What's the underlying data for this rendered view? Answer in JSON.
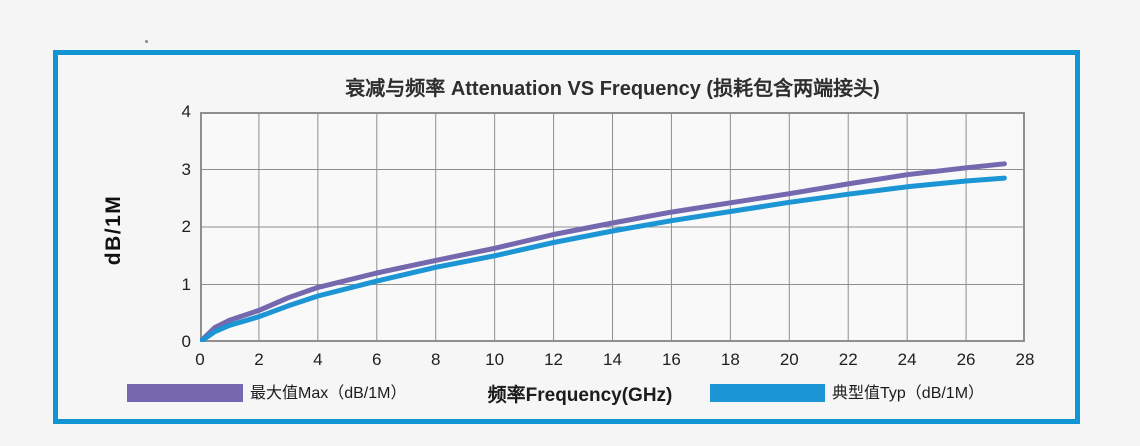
{
  "window": {
    "background": "#f5f5f6"
  },
  "panel": {
    "border_color": "#1094d4"
  },
  "chart_data": {
    "type": "line",
    "title": "衰减与频率 Attenuation VS Frequency (损耗包含两端接头)",
    "xlabel": "频率Frequency(GHz)",
    "ylabel": "dB/1M",
    "xlim": [
      0,
      28
    ],
    "ylim": [
      0,
      4
    ],
    "x_ticks": [
      0,
      2,
      4,
      6,
      8,
      10,
      12,
      14,
      16,
      18,
      20,
      22,
      24,
      26,
      28
    ],
    "y_ticks": [
      0,
      1,
      2,
      3,
      4
    ],
    "grid": true,
    "grid_color": "#8f8f8f",
    "plot_bg": "#f9f9fa",
    "legend_position": "bottom",
    "x": [
      0,
      0.5,
      1,
      2,
      3,
      4,
      6,
      8,
      10,
      12,
      14,
      16,
      18,
      20,
      22,
      24,
      26,
      27.3
    ],
    "series": [
      {
        "name": "最大值Max（dB/1M）",
        "color": "#7568ae",
        "values": [
          0,
          0.25,
          0.38,
          0.55,
          0.77,
          0.95,
          1.2,
          1.42,
          1.63,
          1.87,
          2.07,
          2.26,
          2.42,
          2.58,
          2.75,
          2.91,
          3.03,
          3.1
        ]
      },
      {
        "name": "典型值Typ（dB/1M）",
        "color": "#1b95d3",
        "values": [
          0,
          0.18,
          0.29,
          0.44,
          0.63,
          0.8,
          1.06,
          1.3,
          1.5,
          1.73,
          1.93,
          2.11,
          2.27,
          2.43,
          2.57,
          2.7,
          2.8,
          2.85
        ]
      }
    ]
  },
  "legend": {
    "max": {
      "label": "最大值Max（dB/1M）",
      "color": "#7568ae"
    },
    "typ": {
      "label": "典型值Typ（dB/1M）",
      "color": "#1b95d3"
    }
  }
}
